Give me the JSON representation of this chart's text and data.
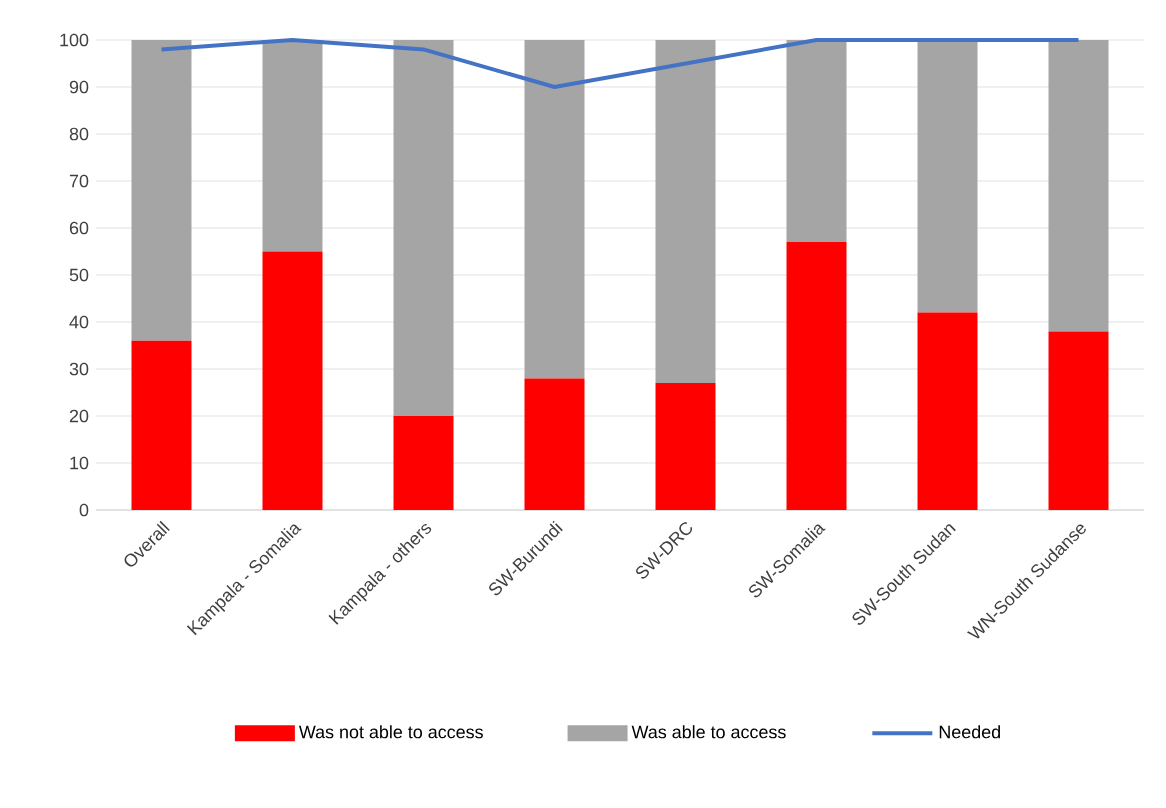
{
  "chart_data": {
    "type": "bar",
    "stacked": true,
    "categories": [
      "Overall",
      "Kampala - Somalia",
      "Kampala - others",
      "SW-Burundi",
      "SW-DRC",
      "SW-Somalia",
      "SW-South Sudan",
      "WN-South Sudanse"
    ],
    "series": [
      {
        "name": "Was not able to access",
        "color": "#ff0000",
        "values": [
          36,
          55,
          20,
          28,
          27,
          57,
          42,
          38
        ]
      },
      {
        "name": "Was able to access",
        "color": "#a5a5a5",
        "values": [
          64,
          45,
          80,
          72,
          73,
          43,
          58,
          62
        ]
      },
      {
        "name": "Needed",
        "type": "line",
        "color": "#4472c4",
        "values": [
          98,
          100,
          98,
          90,
          95,
          100,
          100,
          100
        ]
      }
    ],
    "ylim": [
      0,
      100
    ],
    "yticks": [
      0,
      10,
      20,
      30,
      40,
      50,
      60,
      70,
      80,
      90,
      100
    ],
    "grid": "y",
    "legend": "bottom"
  }
}
